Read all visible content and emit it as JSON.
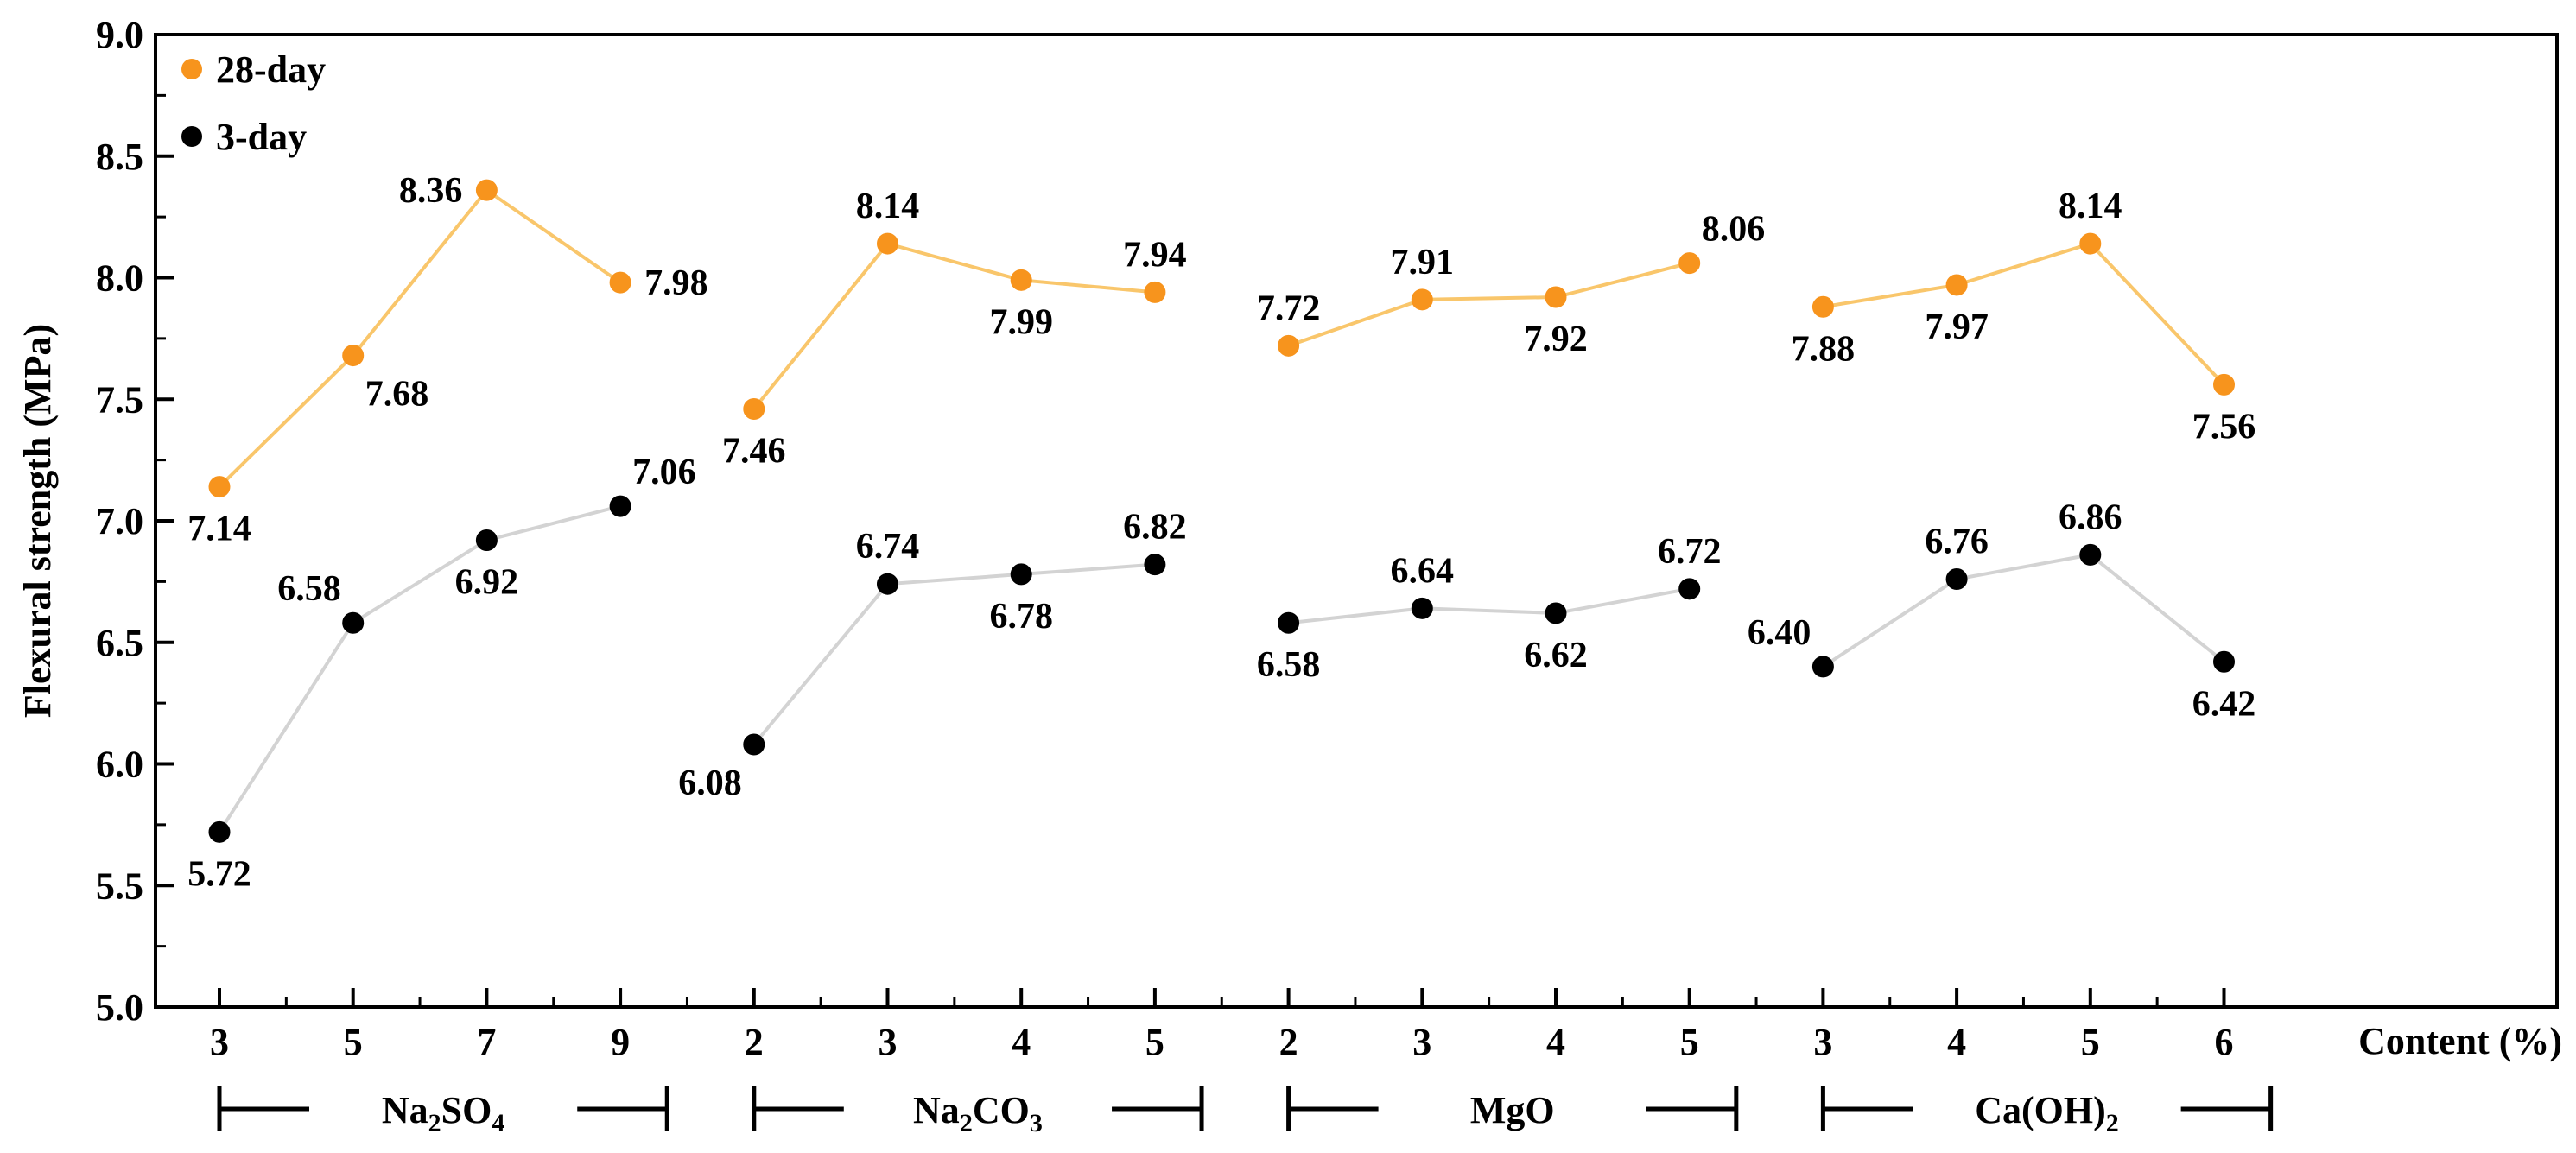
{
  "chart_data": {
    "type": "line",
    "ylabel": "Flexural strength (MPa)",
    "xlabel": "Content (%)",
    "ylim": [
      5.0,
      9.0
    ],
    "yticks": [
      "5.0",
      "5.5",
      "6.0",
      "6.5",
      "7.0",
      "7.5",
      "8.0",
      "8.5",
      "9.0"
    ],
    "categories": [
      "3",
      "5",
      "7",
      "9",
      "2",
      "3",
      "4",
      "5",
      "2",
      "3",
      "4",
      "5",
      "3",
      "4",
      "5",
      "6"
    ],
    "groups": [
      {
        "name": "Na2SO4",
        "base": "Na",
        "sub1": "2",
        "mid": "SO",
        "sub2": "4",
        "indices": [
          0,
          1,
          2,
          3
        ]
      },
      {
        "name": "Na2CO3",
        "base": "Na",
        "sub1": "2",
        "mid": "CO",
        "sub2": "3",
        "indices": [
          4,
          5,
          6,
          7
        ]
      },
      {
        "name": "MgO",
        "base": "MgO",
        "sub1": "",
        "mid": "",
        "sub2": "",
        "indices": [
          8,
          9,
          10,
          11
        ]
      },
      {
        "name": "Ca(OH)2",
        "base": "Ca(OH)",
        "sub1": "2",
        "mid": "",
        "sub2": "",
        "indices": [
          12,
          13,
          14,
          15
        ]
      }
    ],
    "series": [
      {
        "name": "28-day",
        "marker_color": "#F7941D",
        "line_color": "#F9C66B",
        "values": [
          7.14,
          7.68,
          8.36,
          7.98,
          7.46,
          8.14,
          7.99,
          7.94,
          7.72,
          7.91,
          7.92,
          8.06,
          7.88,
          7.97,
          8.14,
          7.56
        ],
        "labels": [
          "7.14",
          "7.68",
          "8.36",
          "7.98",
          "7.46",
          "8.14",
          "7.99",
          "7.94",
          "7.72",
          "7.91",
          "7.92",
          "8.06",
          "7.88",
          "7.97",
          "8.14",
          "7.56"
        ],
        "label_pos": [
          "below",
          "below-right",
          "left",
          "right",
          "below",
          "above",
          "below",
          "above",
          "above",
          "above",
          "below",
          "above-right",
          "below",
          "below",
          "above",
          "below"
        ]
      },
      {
        "name": "3-day",
        "marker_color": "#000000",
        "line_color": "#D3D3D3",
        "values": [
          5.72,
          6.58,
          6.92,
          7.06,
          6.08,
          6.74,
          6.78,
          6.82,
          6.58,
          6.64,
          6.62,
          6.72,
          6.4,
          6.76,
          6.86,
          6.42
        ],
        "labels": [
          "5.72",
          "6.58",
          "6.92",
          "7.06",
          "6.08",
          "6.74",
          "6.78",
          "6.82",
          "6.58",
          "6.64",
          "6.62",
          "6.72",
          "6.40",
          "6.76",
          "6.86",
          "6.42"
        ],
        "label_pos": [
          "below",
          "above-left",
          "below",
          "above-right",
          "below-left",
          "above",
          "below",
          "above",
          "below",
          "above",
          "below",
          "above",
          "above-left",
          "above",
          "above",
          "below"
        ]
      }
    ],
    "legend": {
      "position": "top-left",
      "entries": [
        "28-day",
        "3-day"
      ]
    }
  }
}
